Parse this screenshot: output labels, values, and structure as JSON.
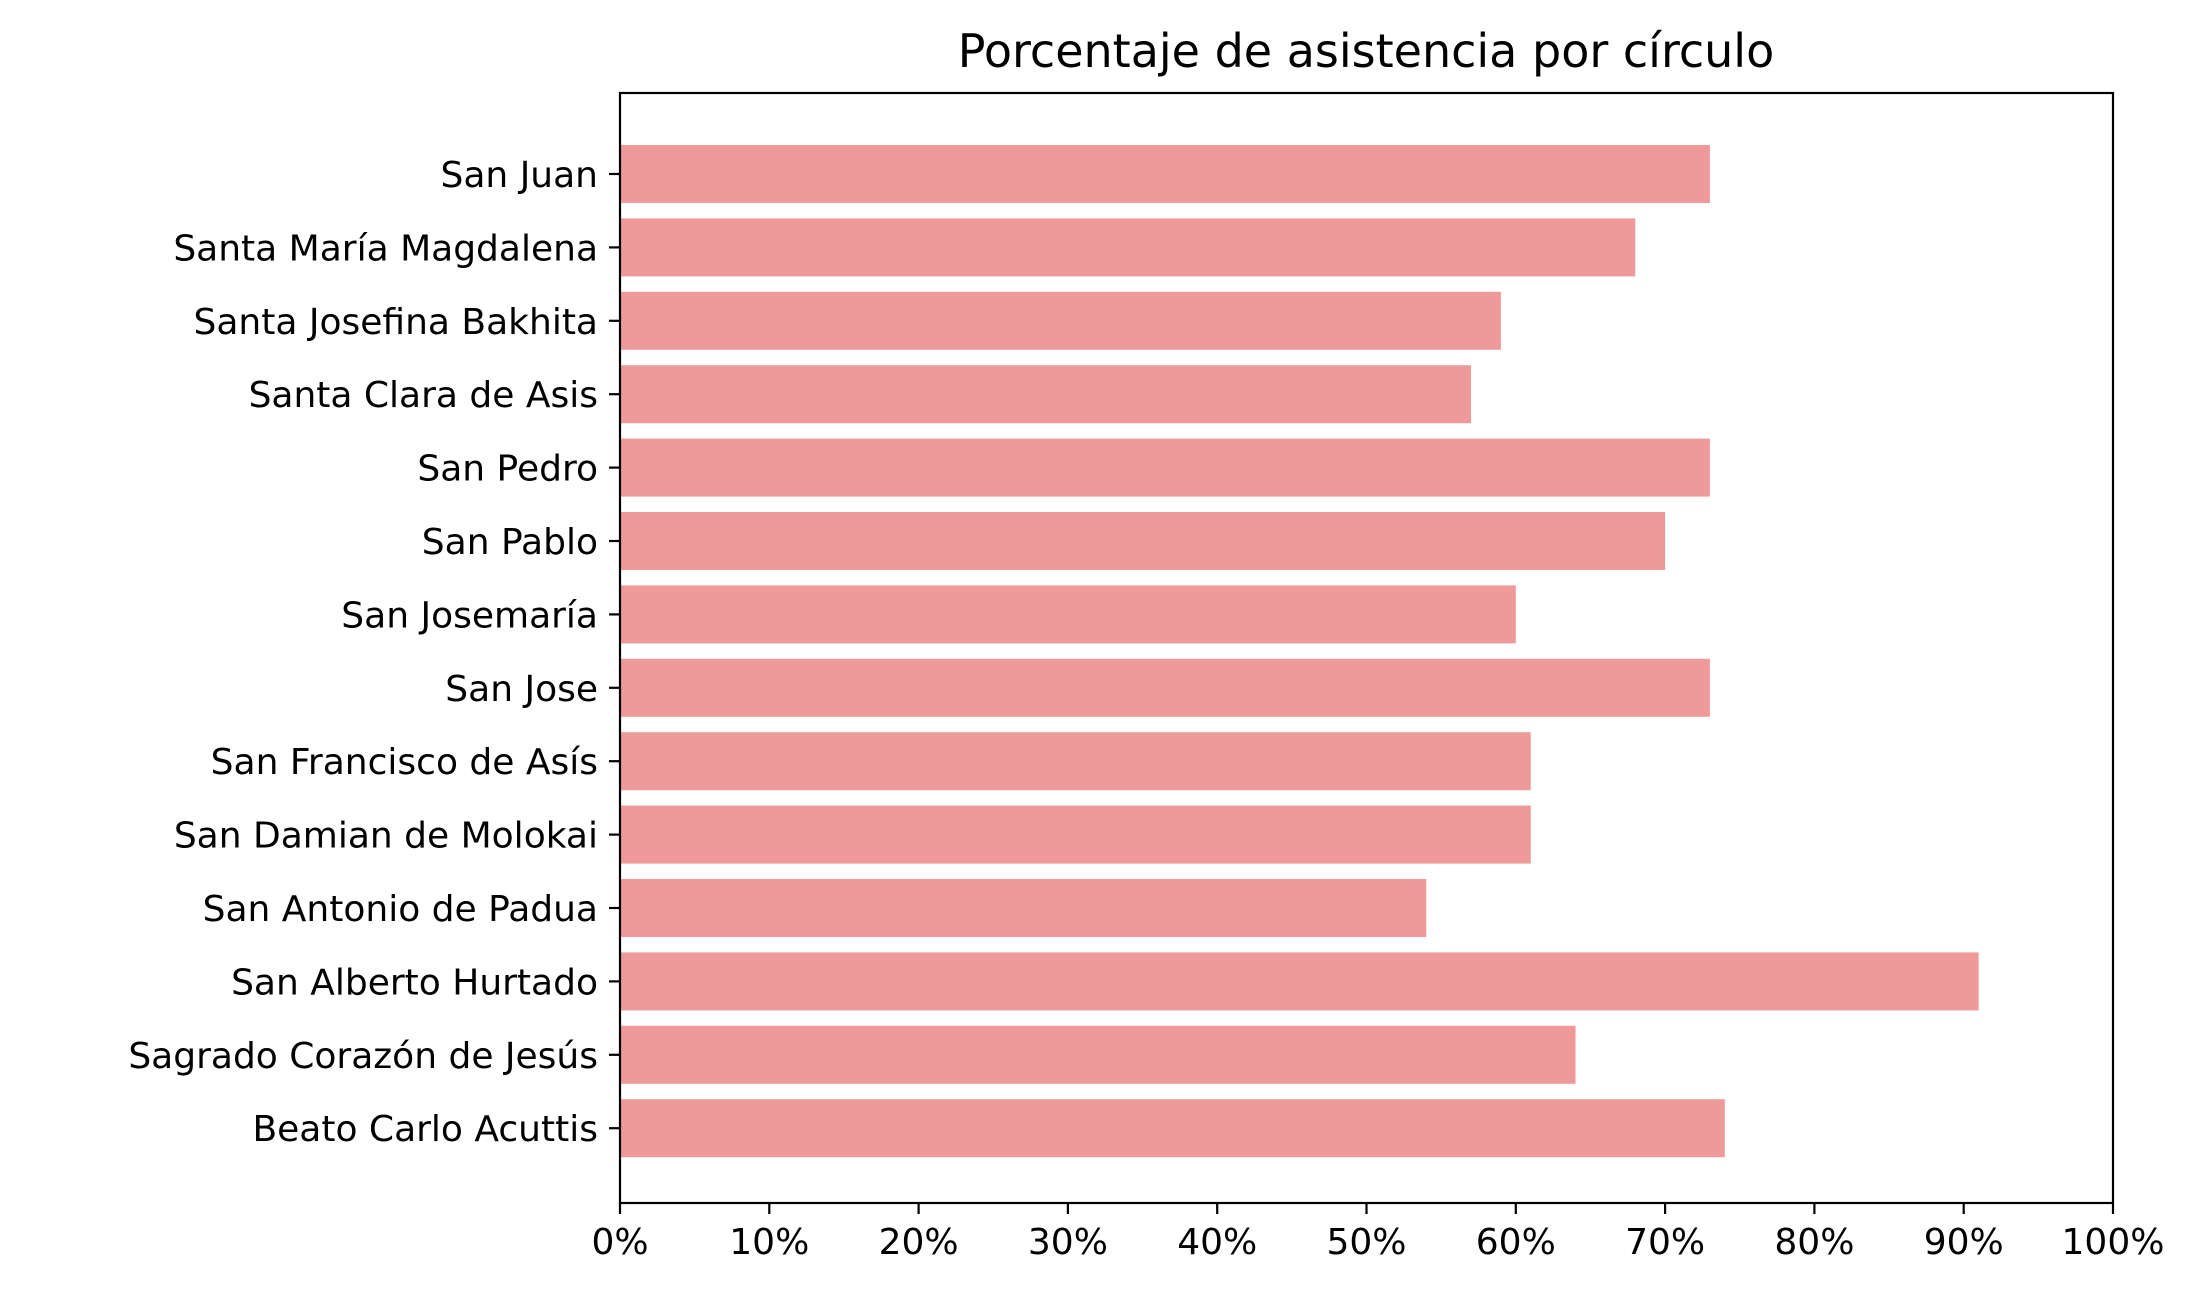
{
  "chart_data": {
    "type": "bar",
    "orientation": "horizontal",
    "title": "Porcentaje de asistencia por círculo",
    "xlabel": "",
    "ylabel": "",
    "categories": [
      "San Juan",
      "Santa María Magdalena",
      "Santa Josefina Bakhita",
      "Santa Clara de Asis",
      "San Pedro",
      "San Pablo",
      "San Josemaría",
      "San Jose",
      "San Francisco de Asís",
      "San Damian de Molokai",
      "San Antonio de Padua",
      "San Alberto Hurtado",
      "Sagrado Corazón de Jesús ",
      "Beato Carlo Acuttis"
    ],
    "values": [
      73,
      68,
      59,
      57,
      73,
      70,
      60,
      73,
      61,
      61,
      54,
      91,
      64,
      74
    ],
    "xlim": [
      0,
      100
    ],
    "xticks": [
      0,
      10,
      20,
      30,
      40,
      50,
      60,
      70,
      80,
      90,
      100
    ],
    "xtick_labels": [
      "0%",
      "10%",
      "20%",
      "30%",
      "40%",
      "50%",
      "60%",
      "70%",
      "80%",
      "90%",
      "100%"
    ],
    "bar_color": "#ee9a9a",
    "grid": false,
    "legend": "none"
  }
}
